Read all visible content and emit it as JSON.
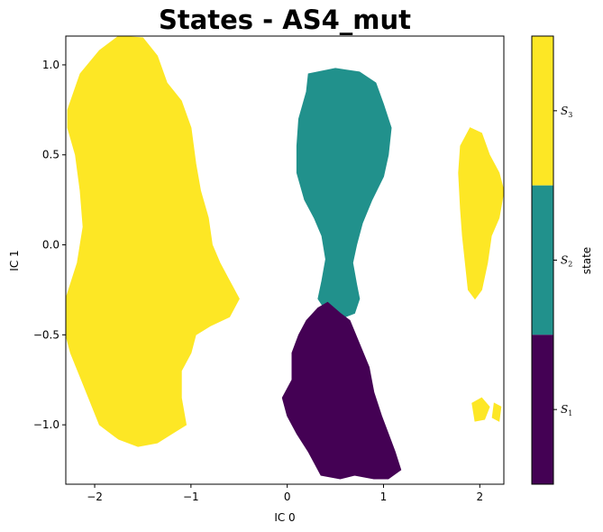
{
  "chart_data": {
    "type": "heatmap",
    "title": "States - AS4_mut",
    "xlabel": "IC 0",
    "ylabel": "IC 1",
    "xlim": [
      -2.3,
      2.25
    ],
    "ylim": [
      -1.33,
      1.16
    ],
    "xticks": [
      -2,
      -1,
      0,
      1,
      2
    ],
    "yticks": [
      1.0,
      0.5,
      0.0,
      -0.5,
      -1.0
    ],
    "xtick_labels": [
      "−2",
      "−1",
      "0",
      "1",
      "2"
    ],
    "ytick_labels": [
      "1.0",
      "0.5",
      "0.0",
      "−0.5",
      "−1.0"
    ],
    "grid": false,
    "colorbar": {
      "label": "state",
      "ticks": [
        {
          "label": "S",
          "sub": "3",
          "color": "#fde725"
        },
        {
          "label": "S",
          "sub": "2",
          "color": "#21918c"
        },
        {
          "label": "S",
          "sub": "1",
          "color": "#440154"
        }
      ]
    },
    "regions": [
      {
        "state": "S3",
        "color": "#fde725",
        "polygon": [
          [
            -2.28,
            0.75
          ],
          [
            -2.15,
            0.95
          ],
          [
            -1.95,
            1.08
          ],
          [
            -1.75,
            1.16
          ],
          [
            -1.5,
            1.15
          ],
          [
            -1.35,
            1.05
          ],
          [
            -1.25,
            0.9
          ],
          [
            -1.1,
            0.8
          ],
          [
            -1.0,
            0.65
          ],
          [
            -0.95,
            0.45
          ],
          [
            -0.9,
            0.3
          ],
          [
            -0.82,
            0.15
          ],
          [
            -0.78,
            0.0
          ],
          [
            -0.7,
            -0.1
          ],
          [
            -0.6,
            -0.2
          ],
          [
            -0.5,
            -0.3
          ],
          [
            -0.6,
            -0.4
          ],
          [
            -0.8,
            -0.45
          ],
          [
            -0.95,
            -0.5
          ],
          [
            -1.0,
            -0.6
          ],
          [
            -1.1,
            -0.7
          ],
          [
            -1.1,
            -0.85
          ],
          [
            -1.05,
            -1.0
          ],
          [
            -1.2,
            -1.05
          ],
          [
            -1.35,
            -1.1
          ],
          [
            -1.55,
            -1.12
          ],
          [
            -1.75,
            -1.08
          ],
          [
            -1.95,
            -1.0
          ],
          [
            -2.1,
            -0.8
          ],
          [
            -2.25,
            -0.6
          ],
          [
            -2.3,
            -0.5
          ],
          [
            -2.3,
            -0.3
          ],
          [
            -2.18,
            -0.1
          ],
          [
            -2.12,
            0.1
          ],
          [
            -2.15,
            0.3
          ],
          [
            -2.2,
            0.5
          ],
          [
            -2.28,
            0.65
          ]
        ]
      },
      {
        "state": "S3",
        "color": "#fde725",
        "polygon": [
          [
            1.8,
            0.55
          ],
          [
            1.9,
            0.65
          ],
          [
            2.02,
            0.62
          ],
          [
            2.1,
            0.5
          ],
          [
            2.2,
            0.4
          ],
          [
            2.25,
            0.3
          ],
          [
            2.2,
            0.15
          ],
          [
            2.12,
            0.05
          ],
          [
            2.08,
            -0.1
          ],
          [
            2.02,
            -0.25
          ],
          [
            1.95,
            -0.3
          ],
          [
            1.88,
            -0.25
          ],
          [
            1.85,
            -0.1
          ],
          [
            1.82,
            0.05
          ],
          [
            1.8,
            0.2
          ],
          [
            1.78,
            0.4
          ]
        ]
      },
      {
        "state": "S3",
        "color": "#fde725",
        "polygon": [
          [
            1.92,
            -0.88
          ],
          [
            2.02,
            -0.85
          ],
          [
            2.1,
            -0.9
          ],
          [
            2.05,
            -0.97
          ],
          [
            1.95,
            -0.98
          ]
        ]
      },
      {
        "state": "S3",
        "color": "#fde725",
        "polygon": [
          [
            2.15,
            -0.88
          ],
          [
            2.22,
            -0.9
          ],
          [
            2.2,
            -0.98
          ],
          [
            2.13,
            -0.96
          ]
        ]
      },
      {
        "state": "S2",
        "color": "#21918c",
        "polygon": [
          [
            0.2,
            0.85
          ],
          [
            0.22,
            0.95
          ],
          [
            0.5,
            0.98
          ],
          [
            0.75,
            0.96
          ],
          [
            0.92,
            0.9
          ],
          [
            1.0,
            0.78
          ],
          [
            1.08,
            0.65
          ],
          [
            1.05,
            0.5
          ],
          [
            1.0,
            0.38
          ],
          [
            0.88,
            0.25
          ],
          [
            0.78,
            0.12
          ],
          [
            0.72,
            0.0
          ],
          [
            0.68,
            -0.1
          ],
          [
            0.72,
            -0.22
          ],
          [
            0.75,
            -0.3
          ],
          [
            0.7,
            -0.38
          ],
          [
            0.6,
            -0.4
          ],
          [
            0.5,
            -0.36
          ],
          [
            0.42,
            -0.38
          ],
          [
            0.32,
            -0.3
          ],
          [
            0.36,
            -0.2
          ],
          [
            0.4,
            -0.08
          ],
          [
            0.36,
            0.05
          ],
          [
            0.28,
            0.15
          ],
          [
            0.18,
            0.25
          ],
          [
            0.1,
            0.4
          ],
          [
            0.1,
            0.55
          ],
          [
            0.12,
            0.7
          ]
        ]
      },
      {
        "state": "S1",
        "color": "#440154",
        "polygon": [
          [
            0.32,
            -0.35
          ],
          [
            0.42,
            -0.32
          ],
          [
            0.55,
            -0.38
          ],
          [
            0.65,
            -0.42
          ],
          [
            0.75,
            -0.55
          ],
          [
            0.85,
            -0.68
          ],
          [
            0.9,
            -0.82
          ],
          [
            0.98,
            -0.95
          ],
          [
            1.05,
            -1.05
          ],
          [
            1.12,
            -1.15
          ],
          [
            1.18,
            -1.25
          ],
          [
            1.05,
            -1.3
          ],
          [
            0.9,
            -1.3
          ],
          [
            0.7,
            -1.28
          ],
          [
            0.55,
            -1.3
          ],
          [
            0.35,
            -1.28
          ],
          [
            0.22,
            -1.15
          ],
          [
            0.1,
            -1.05
          ],
          [
            0.0,
            -0.95
          ],
          [
            -0.05,
            -0.85
          ],
          [
            0.05,
            -0.75
          ],
          [
            0.05,
            -0.6
          ],
          [
            0.12,
            -0.5
          ],
          [
            0.2,
            -0.42
          ]
        ]
      }
    ]
  }
}
